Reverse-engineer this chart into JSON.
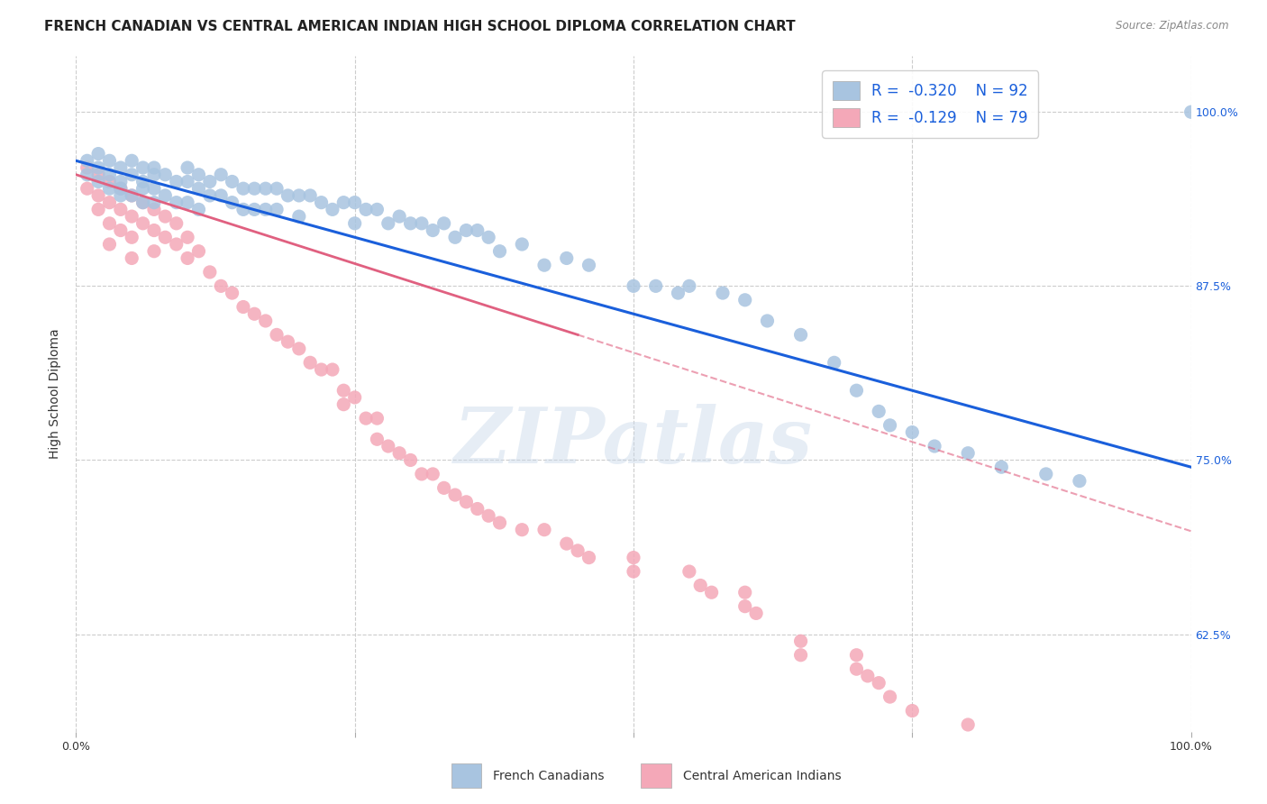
{
  "title": "FRENCH CANADIAN VS CENTRAL AMERICAN INDIAN HIGH SCHOOL DIPLOMA CORRELATION CHART",
  "source": "Source: ZipAtlas.com",
  "ylabel": "High School Diploma",
  "watermark": "ZIPatlas",
  "legend_blue_R_val": "-0.320",
  "legend_blue_N": "N = 92",
  "legend_pink_R_val": "-0.129",
  "legend_pink_N": "N = 79",
  "blue_color": "#a8c4e0",
  "pink_color": "#f4a8b8",
  "blue_line_color": "#1a5fdb",
  "pink_line_color": "#e06080",
  "pink_line_dash_color": "#f4a8b8",
  "xmin": 0.0,
  "xmax": 1.0,
  "ymin": 0.555,
  "ymax": 1.04,
  "ytick_labels": [
    "62.5%",
    "75.0%",
    "87.5%",
    "100.0%"
  ],
  "ytick_values": [
    0.625,
    0.75,
    0.875,
    1.0
  ],
  "blue_scatter_x": [
    0.01,
    0.01,
    0.02,
    0.02,
    0.02,
    0.03,
    0.03,
    0.03,
    0.04,
    0.04,
    0.04,
    0.04,
    0.05,
    0.05,
    0.05,
    0.06,
    0.06,
    0.06,
    0.06,
    0.07,
    0.07,
    0.07,
    0.07,
    0.08,
    0.08,
    0.09,
    0.09,
    0.1,
    0.1,
    0.1,
    0.11,
    0.11,
    0.11,
    0.12,
    0.12,
    0.13,
    0.13,
    0.14,
    0.14,
    0.15,
    0.15,
    0.16,
    0.16,
    0.17,
    0.17,
    0.18,
    0.18,
    0.19,
    0.2,
    0.2,
    0.21,
    0.22,
    0.23,
    0.24,
    0.25,
    0.25,
    0.26,
    0.27,
    0.28,
    0.29,
    0.3,
    0.31,
    0.32,
    0.33,
    0.34,
    0.35,
    0.36,
    0.37,
    0.38,
    0.4,
    0.42,
    0.44,
    0.46,
    0.5,
    0.52,
    0.54,
    0.55,
    0.58,
    0.6,
    0.62,
    0.65,
    0.68,
    0.7,
    0.72,
    0.73,
    0.75,
    0.77,
    0.8,
    0.83,
    0.87,
    0.9,
    1.0
  ],
  "blue_scatter_y": [
    0.965,
    0.955,
    0.97,
    0.96,
    0.95,
    0.965,
    0.955,
    0.945,
    0.96,
    0.95,
    0.945,
    0.94,
    0.965,
    0.955,
    0.94,
    0.96,
    0.95,
    0.945,
    0.935,
    0.96,
    0.955,
    0.945,
    0.935,
    0.955,
    0.94,
    0.95,
    0.935,
    0.96,
    0.95,
    0.935,
    0.955,
    0.945,
    0.93,
    0.95,
    0.94,
    0.955,
    0.94,
    0.95,
    0.935,
    0.945,
    0.93,
    0.945,
    0.93,
    0.945,
    0.93,
    0.945,
    0.93,
    0.94,
    0.94,
    0.925,
    0.94,
    0.935,
    0.93,
    0.935,
    0.935,
    0.92,
    0.93,
    0.93,
    0.92,
    0.925,
    0.92,
    0.92,
    0.915,
    0.92,
    0.91,
    0.915,
    0.915,
    0.91,
    0.9,
    0.905,
    0.89,
    0.895,
    0.89,
    0.875,
    0.875,
    0.87,
    0.875,
    0.87,
    0.865,
    0.85,
    0.84,
    0.82,
    0.8,
    0.785,
    0.775,
    0.77,
    0.76,
    0.755,
    0.745,
    0.74,
    0.735,
    1.0
  ],
  "pink_scatter_x": [
    0.01,
    0.01,
    0.02,
    0.02,
    0.02,
    0.03,
    0.03,
    0.03,
    0.03,
    0.04,
    0.04,
    0.04,
    0.05,
    0.05,
    0.05,
    0.05,
    0.06,
    0.06,
    0.07,
    0.07,
    0.07,
    0.08,
    0.08,
    0.09,
    0.09,
    0.1,
    0.1,
    0.11,
    0.12,
    0.13,
    0.14,
    0.15,
    0.16,
    0.17,
    0.18,
    0.19,
    0.2,
    0.21,
    0.22,
    0.23,
    0.24,
    0.24,
    0.25,
    0.26,
    0.27,
    0.27,
    0.28,
    0.29,
    0.3,
    0.31,
    0.32,
    0.33,
    0.34,
    0.35,
    0.36,
    0.37,
    0.38,
    0.4,
    0.42,
    0.44,
    0.45,
    0.46,
    0.5,
    0.5,
    0.55,
    0.56,
    0.57,
    0.6,
    0.6,
    0.61,
    0.65,
    0.65,
    0.7,
    0.7,
    0.71,
    0.72,
    0.73,
    0.75,
    0.8
  ],
  "pink_scatter_y": [
    0.96,
    0.945,
    0.955,
    0.94,
    0.93,
    0.95,
    0.935,
    0.92,
    0.905,
    0.945,
    0.93,
    0.915,
    0.94,
    0.925,
    0.91,
    0.895,
    0.935,
    0.92,
    0.93,
    0.915,
    0.9,
    0.925,
    0.91,
    0.92,
    0.905,
    0.91,
    0.895,
    0.9,
    0.885,
    0.875,
    0.87,
    0.86,
    0.855,
    0.85,
    0.84,
    0.835,
    0.83,
    0.82,
    0.815,
    0.815,
    0.8,
    0.79,
    0.795,
    0.78,
    0.78,
    0.765,
    0.76,
    0.755,
    0.75,
    0.74,
    0.74,
    0.73,
    0.725,
    0.72,
    0.715,
    0.71,
    0.705,
    0.7,
    0.7,
    0.69,
    0.685,
    0.68,
    0.68,
    0.67,
    0.67,
    0.66,
    0.655,
    0.655,
    0.645,
    0.64,
    0.62,
    0.61,
    0.61,
    0.6,
    0.595,
    0.59,
    0.58,
    0.57,
    0.56
  ],
  "blue_line_x": [
    0.0,
    1.0
  ],
  "blue_line_y": [
    0.965,
    0.745
  ],
  "pink_solid_line_x": [
    0.0,
    0.45
  ],
  "pink_solid_line_y": [
    0.955,
    0.84
  ],
  "pink_dash_line_x": [
    0.45,
    1.0
  ],
  "pink_dash_line_y": [
    0.84,
    0.699
  ],
  "background_color": "#ffffff",
  "grid_color": "#cccccc",
  "title_fontsize": 11,
  "axis_label_fontsize": 10,
  "tick_fontsize": 9,
  "right_tick_color": "#1a5fdb"
}
